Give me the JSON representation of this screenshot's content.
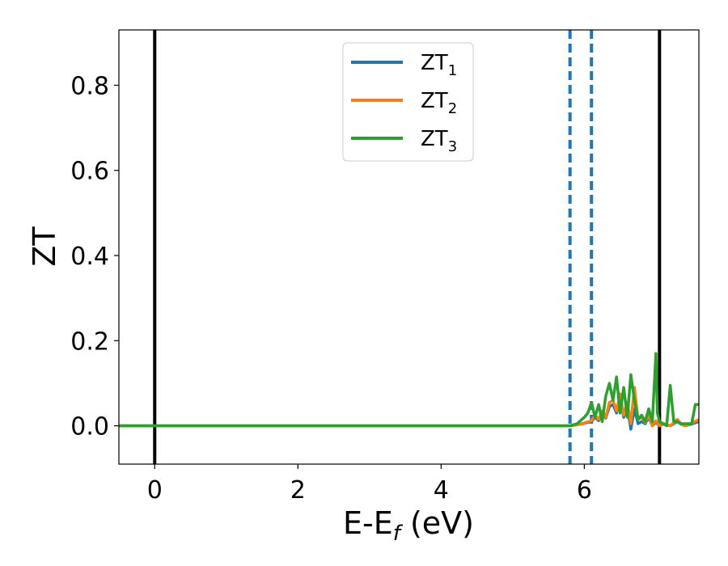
{
  "chart_data": {
    "type": "line",
    "xlabel": "E-E",
    "xlabel_sub": "f",
    "xlabel_unit": " (eV)",
    "ylabel": "ZT",
    "xlim": [
      -0.5,
      7.6
    ],
    "ylim": [
      -0.09,
      0.93
    ],
    "xticks": [
      0,
      2,
      4,
      6
    ],
    "xtick_labels": [
      "0",
      "2",
      "4",
      "6"
    ],
    "yticks": [
      0.0,
      0.2,
      0.4,
      0.6,
      0.8
    ],
    "ytick_labels": [
      "0.0",
      "0.2",
      "0.4",
      "0.6",
      "0.8"
    ],
    "grid": false,
    "legend_position": "top-center",
    "vertical_lines": [
      {
        "x": 0.0,
        "style": "solid",
        "color": "#000000"
      },
      {
        "x": 7.05,
        "style": "solid",
        "color": "#000000"
      },
      {
        "x": 5.8,
        "style": "dashed",
        "color": "#1f77b4"
      },
      {
        "x": 6.1,
        "style": "dashed",
        "color": "#1f77b4"
      }
    ],
    "series": [
      {
        "name": "ZT",
        "sub": "1",
        "color": "#1f77b4",
        "x": [
          -0.5,
          5.8,
          5.95,
          6.1,
          6.15,
          6.2,
          6.25,
          6.3,
          6.35,
          6.4,
          6.45,
          6.5,
          6.55,
          6.6,
          6.65,
          6.7,
          6.75,
          6.8,
          6.85,
          6.9,
          6.95,
          7.0,
          7.05,
          7.1,
          7.2,
          7.3,
          7.35,
          7.4,
          7.5,
          7.6
        ],
        "y": [
          0.0,
          0.0,
          0.004,
          0.01,
          0.02,
          0.012,
          0.03,
          0.018,
          0.045,
          0.05,
          0.03,
          0.065,
          0.02,
          0.045,
          -0.008,
          0.04,
          0.005,
          0.01,
          0.005,
          0.02,
          0.0,
          0.008,
          0.0,
          0.004,
          0.0,
          0.01,
          0.004,
          0.0,
          0.004,
          0.01
        ]
      },
      {
        "name": "ZT",
        "sub": "2",
        "color": "#ff7f0e",
        "x": [
          -0.5,
          5.8,
          5.95,
          6.1,
          6.15,
          6.2,
          6.25,
          6.3,
          6.35,
          6.4,
          6.45,
          6.5,
          6.55,
          6.6,
          6.65,
          6.7,
          6.75,
          6.8,
          6.85,
          6.9,
          6.95,
          7.0,
          7.05,
          7.1,
          7.2,
          7.3,
          7.35,
          7.4,
          7.5,
          7.6
        ],
        "y": [
          0.0,
          0.0,
          0.004,
          0.012,
          0.025,
          0.015,
          0.035,
          0.02,
          0.055,
          0.06,
          0.035,
          0.075,
          0.025,
          0.055,
          0.005,
          0.09,
          0.015,
          0.02,
          0.008,
          0.025,
          0.0,
          0.012,
          0.0,
          0.006,
          0.0,
          0.015,
          0.005,
          0.0,
          0.006,
          0.015
        ]
      },
      {
        "name": "ZT",
        "sub": "3",
        "color": "#2ca02c",
        "x": [
          -0.5,
          5.8,
          5.9,
          6.0,
          6.05,
          6.1,
          6.15,
          6.2,
          6.25,
          6.3,
          6.35,
          6.4,
          6.45,
          6.5,
          6.55,
          6.6,
          6.65,
          6.7,
          6.75,
          6.8,
          6.85,
          6.9,
          6.95,
          7.0,
          7.02,
          7.05,
          7.1,
          7.15,
          7.2,
          7.25,
          7.3,
          7.35,
          7.4,
          7.5,
          7.55,
          7.6
        ],
        "y": [
          0.0,
          0.0,
          0.005,
          0.02,
          0.03,
          0.055,
          0.02,
          0.05,
          0.01,
          0.07,
          0.1,
          0.06,
          0.115,
          0.03,
          0.09,
          0.02,
          0.12,
          0.06,
          0.015,
          0.025,
          0.01,
          0.04,
          0.01,
          0.17,
          0.03,
          0.01,
          0.005,
          0.0,
          0.095,
          0.01,
          0.01,
          0.005,
          0.005,
          0.005,
          0.05,
          0.05
        ]
      }
    ]
  }
}
